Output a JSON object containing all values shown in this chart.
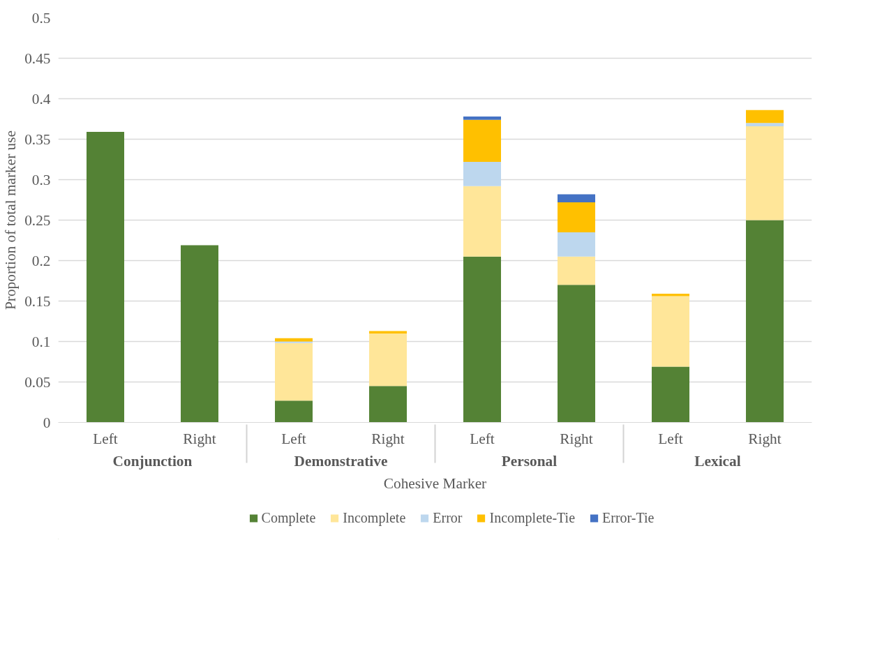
{
  "chart_data": {
    "type": "bar",
    "stacked": true,
    "xlabel": "Cohesive Marker",
    "ylabel": "Proportion of total marker use",
    "categories": [
      "Left",
      "Right",
      "Left",
      "Right",
      "Left",
      "Right",
      "Left",
      "Right"
    ],
    "annotations": [
      "Conjunction",
      "Demonstrative",
      "Personal",
      "Lexical"
    ],
    "series": [
      {
        "name": "Complete",
        "color": "#548235",
        "values": [
          0.359,
          0.219,
          0.027,
          0.045,
          0.205,
          0.17,
          0.069,
          0.25
        ]
      },
      {
        "name": "Incomplete",
        "color": "#ffe699",
        "values": [
          0,
          0,
          0.071,
          0.065,
          0.087,
          0.035,
          0.087,
          0.116
        ]
      },
      {
        "name": "Error",
        "color": "#bdd7ee",
        "values": [
          0,
          0,
          0.002,
          0,
          0.03,
          0.03,
          0,
          0.004
        ]
      },
      {
        "name": "Incomplete-Tie",
        "color": "#ffc000",
        "values": [
          0,
          0,
          0.004,
          0.003,
          0.052,
          0.037,
          0.003,
          0.016
        ]
      },
      {
        "name": "Error-Tie",
        "color": "#4472c4",
        "values": [
          0,
          0,
          0,
          0,
          0.004,
          0.01,
          0,
          0
        ]
      }
    ],
    "ylim": [
      0,
      0.5
    ],
    "yticks": [
      0,
      0.05,
      0.1,
      0.15,
      0.2,
      0.25,
      0.3,
      0.35,
      0.4,
      0.45,
      0.5
    ],
    "grid": "y",
    "legend": "bottom"
  }
}
